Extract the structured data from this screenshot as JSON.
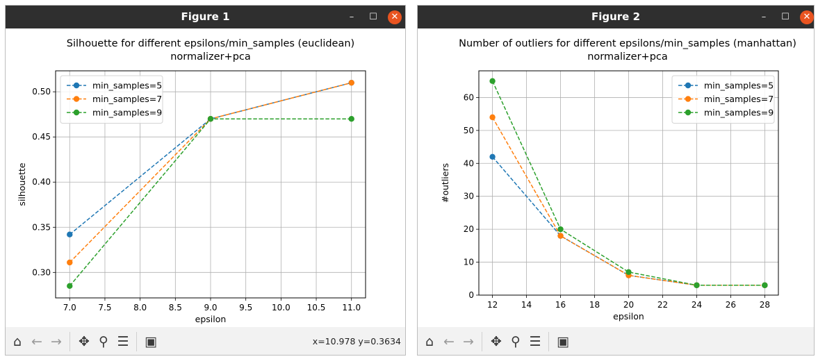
{
  "windows": [
    {
      "title": "Figure 1",
      "controls": {
        "minimize": "–",
        "maximize": "☐",
        "close": "✕"
      },
      "status": "x=10.978 y=0.3634"
    },
    {
      "title": "Figure 2",
      "controls": {
        "minimize": "–",
        "maximize": "☐",
        "close": "✕"
      },
      "status": ""
    }
  ],
  "toolbar_icons": [
    "home-icon",
    "back-arrow-icon",
    "forward-arrow-icon",
    "pan-icon",
    "zoom-icon",
    "configure-subplots-icon",
    "save-icon"
  ],
  "chart_data": [
    {
      "type": "line",
      "title": "Silhouette for different epsilons/min_samples (euclidean)",
      "subtitle": "normalizer+pca",
      "xlabel": "epsilon",
      "ylabel": "silhouette",
      "xlim": [
        6.8,
        11.2
      ],
      "ylim": [
        0.2718,
        0.5232
      ],
      "xticks": [
        "7.0",
        "7.5",
        "8.0",
        "8.5",
        "9.0",
        "9.5",
        "10.0",
        "10.5",
        "11.0"
      ],
      "yticks": [
        "0.30",
        "0.35",
        "0.40",
        "0.45",
        "0.50"
      ],
      "x": [
        7.0,
        9.0,
        11.0
      ],
      "series": [
        {
          "name": "min_samples=5",
          "values": [
            0.342,
            0.47,
            0.51
          ],
          "color": "#1f77b4"
        },
        {
          "name": "min_samples=7",
          "values": [
            0.311,
            0.47,
            0.51
          ],
          "color": "#ff7f0e"
        },
        {
          "name": "min_samples=9",
          "values": [
            0.285,
            0.47,
            0.47
          ],
          "color": "#2ca02c"
        }
      ],
      "grid": true,
      "legend": "top-left"
    },
    {
      "type": "line",
      "title": "Number of outliers for different epsilons/min_samples (manhattan)",
      "subtitle": "normalizer+pca",
      "xlabel": "epsilon",
      "ylabel": "#outliers",
      "xlim": [
        11.2,
        28.8
      ],
      "ylim": [
        0,
        68.1
      ],
      "xticks": [
        "12",
        "14",
        "16",
        "18",
        "20",
        "22",
        "24",
        "26",
        "28"
      ],
      "yticks": [
        "0",
        "10",
        "20",
        "30",
        "40",
        "50",
        "60"
      ],
      "x": [
        12,
        16,
        20,
        24,
        28
      ],
      "series": [
        {
          "name": "min_samples=5",
          "values": [
            42,
            18,
            6,
            3,
            3
          ],
          "color": "#1f77b4"
        },
        {
          "name": "min_samples=7",
          "values": [
            54,
            18,
            6,
            3,
            3
          ],
          "color": "#ff7f0e"
        },
        {
          "name": "min_samples=9",
          "values": [
            65,
            20,
            7,
            3,
            3
          ],
          "color": "#2ca02c"
        }
      ],
      "grid": true,
      "legend": "top-right"
    }
  ]
}
